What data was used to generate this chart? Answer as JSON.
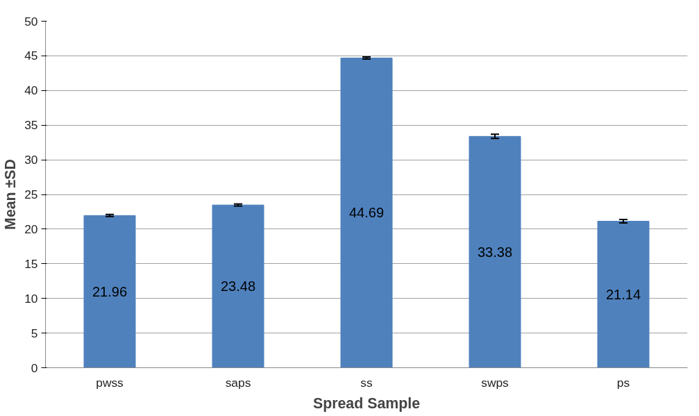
{
  "chart_data": {
    "type": "bar",
    "xlabel": "Spread Sample",
    "ylabel": "Mean ±SD",
    "categories": [
      "pwss",
      "saps",
      "ss",
      "swps",
      "ps"
    ],
    "values": [
      21.96,
      23.48,
      44.69,
      33.38,
      21.14
    ],
    "errors": [
      0.15,
      0.15,
      0.15,
      0.3,
      0.25
    ],
    "color": "#4f81bd",
    "data_labels": true,
    "grid": "y",
    "ylim": [
      0,
      50
    ],
    "yticks": [
      0,
      5,
      10,
      15,
      20,
      25,
      30,
      35,
      40,
      45,
      50
    ]
  }
}
